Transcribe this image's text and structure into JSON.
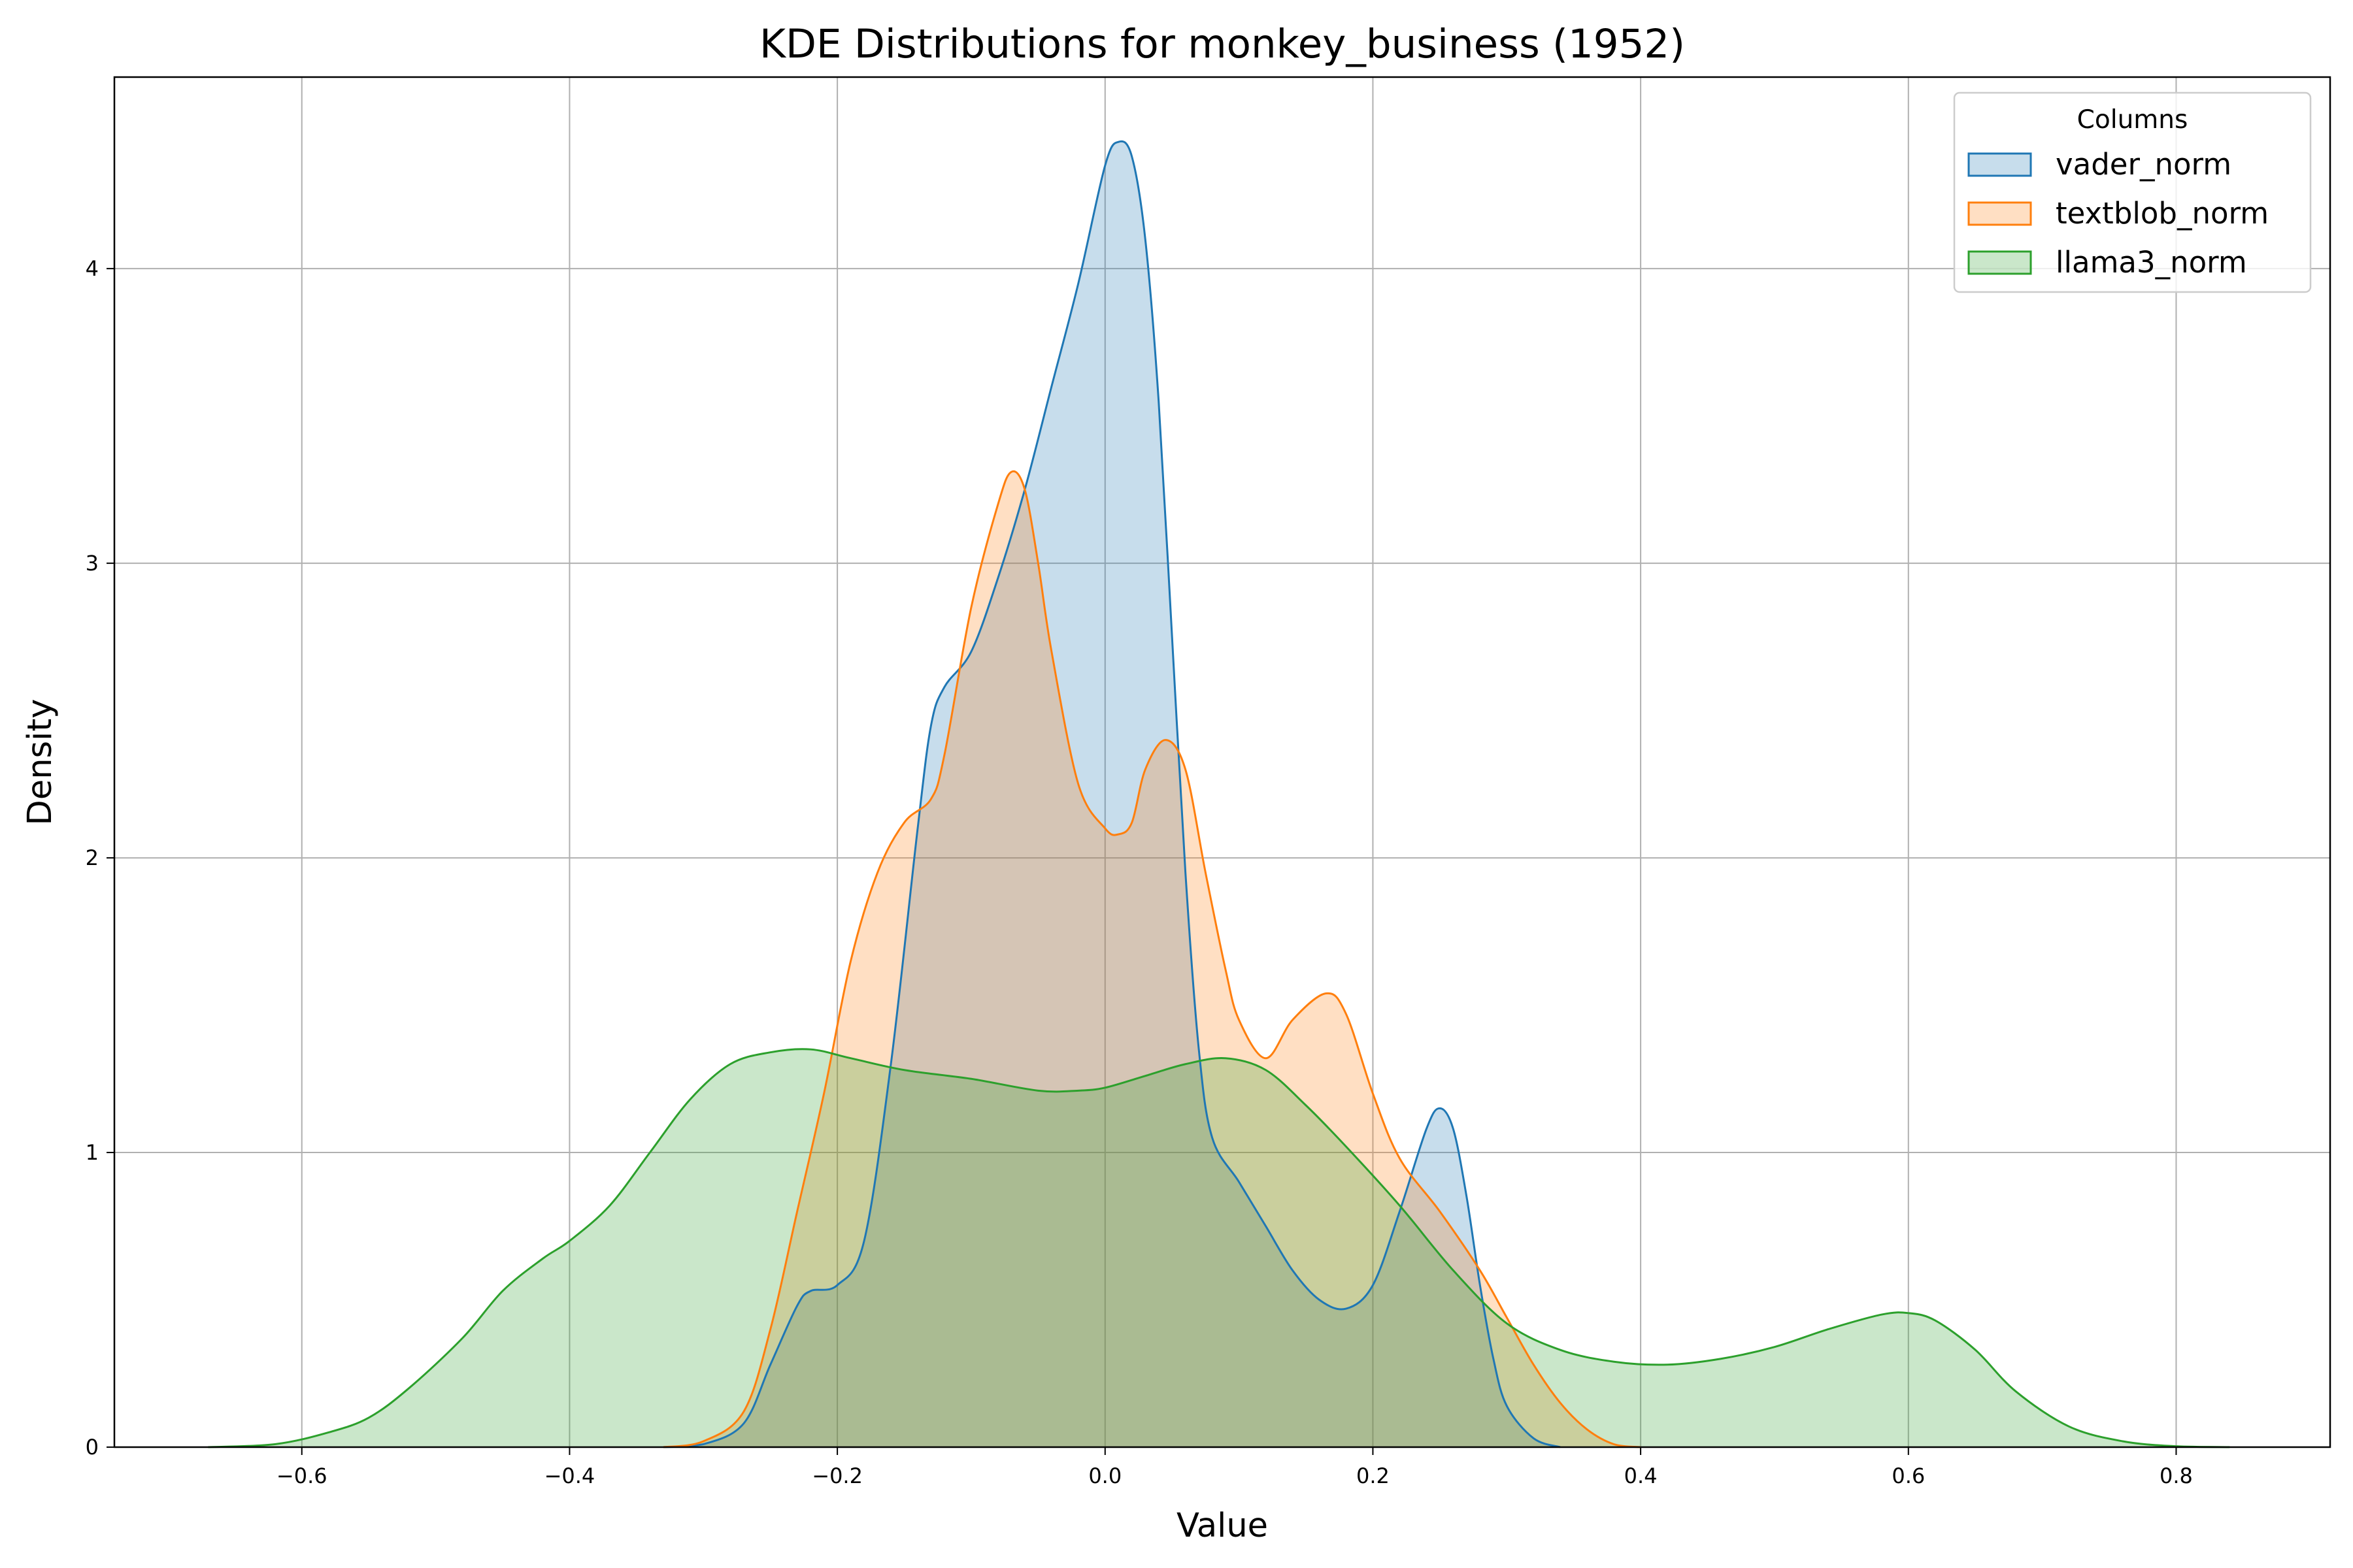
{
  "chart_data": {
    "type": "area",
    "title": "KDE Distributions for monkey_business (1952)",
    "xlabel": "Value",
    "ylabel": "Density",
    "xlim": [
      -0.74,
      0.915
    ],
    "ylim": [
      0,
      4.65
    ],
    "xticks": [
      -0.6,
      -0.4,
      -0.2,
      0.0,
      0.2,
      0.4,
      0.6,
      0.8
    ],
    "xtick_labels": [
      "−0.6",
      "−0.4",
      "−0.2",
      "0.0",
      "0.2",
      "0.4",
      "0.6",
      "0.8"
    ],
    "yticks": [
      0,
      1,
      2,
      3,
      4
    ],
    "ytick_labels": [
      "0",
      "1",
      "2",
      "3",
      "4"
    ],
    "grid": true,
    "legend": {
      "title": "Columns",
      "position": "top-right"
    },
    "series": [
      {
        "name": "vader_norm",
        "color": "#1f77b4",
        "points": [
          [
            -0.33,
            0
          ],
          [
            -0.3,
            0.01
          ],
          [
            -0.27,
            0.08
          ],
          [
            -0.25,
            0.28
          ],
          [
            -0.23,
            0.48
          ],
          [
            -0.22,
            0.53
          ],
          [
            -0.2,
            0.55
          ],
          [
            -0.18,
            0.7
          ],
          [
            -0.16,
            1.3
          ],
          [
            -0.14,
            2.1
          ],
          [
            -0.13,
            2.45
          ],
          [
            -0.12,
            2.58
          ],
          [
            -0.1,
            2.7
          ],
          [
            -0.08,
            2.95
          ],
          [
            -0.06,
            3.25
          ],
          [
            -0.04,
            3.6
          ],
          [
            -0.02,
            3.95
          ],
          [
            0.0,
            4.35
          ],
          [
            0.01,
            4.43
          ],
          [
            0.02,
            4.38
          ],
          [
            0.03,
            4.1
          ],
          [
            0.04,
            3.55
          ],
          [
            0.05,
            2.75
          ],
          [
            0.06,
            1.95
          ],
          [
            0.07,
            1.35
          ],
          [
            0.08,
            1.05
          ],
          [
            0.1,
            0.9
          ],
          [
            0.12,
            0.75
          ],
          [
            0.14,
            0.6
          ],
          [
            0.16,
            0.5
          ],
          [
            0.18,
            0.47
          ],
          [
            0.2,
            0.55
          ],
          [
            0.22,
            0.8
          ],
          [
            0.24,
            1.08
          ],
          [
            0.25,
            1.15
          ],
          [
            0.26,
            1.08
          ],
          [
            0.27,
            0.85
          ],
          [
            0.28,
            0.55
          ],
          [
            0.29,
            0.3
          ],
          [
            0.3,
            0.14
          ],
          [
            0.32,
            0.03
          ],
          [
            0.34,
            0
          ]
        ]
      },
      {
        "name": "textblob_norm",
        "color": "#ff7f0e",
        "points": [
          [
            -0.33,
            0
          ],
          [
            -0.3,
            0.02
          ],
          [
            -0.27,
            0.12
          ],
          [
            -0.25,
            0.4
          ],
          [
            -0.23,
            0.8
          ],
          [
            -0.21,
            1.2
          ],
          [
            -0.19,
            1.65
          ],
          [
            -0.17,
            1.95
          ],
          [
            -0.15,
            2.12
          ],
          [
            -0.13,
            2.2
          ],
          [
            -0.12,
            2.35
          ],
          [
            -0.1,
            2.85
          ],
          [
            -0.08,
            3.2
          ],
          [
            -0.07,
            3.31
          ],
          [
            -0.06,
            3.25
          ],
          [
            -0.05,
            3.0
          ],
          [
            -0.04,
            2.7
          ],
          [
            -0.02,
            2.25
          ],
          [
            0.0,
            2.1
          ],
          [
            0.01,
            2.08
          ],
          [
            0.02,
            2.12
          ],
          [
            0.03,
            2.3
          ],
          [
            0.045,
            2.4
          ],
          [
            0.06,
            2.3
          ],
          [
            0.075,
            1.95
          ],
          [
            0.09,
            1.62
          ],
          [
            0.1,
            1.45
          ],
          [
            0.12,
            1.32
          ],
          [
            0.14,
            1.45
          ],
          [
            0.165,
            1.54
          ],
          [
            0.18,
            1.47
          ],
          [
            0.2,
            1.2
          ],
          [
            0.22,
            0.98
          ],
          [
            0.25,
            0.8
          ],
          [
            0.28,
            0.6
          ],
          [
            0.3,
            0.44
          ],
          [
            0.32,
            0.28
          ],
          [
            0.34,
            0.15
          ],
          [
            0.36,
            0.06
          ],
          [
            0.38,
            0.01
          ],
          [
            0.4,
            0
          ]
        ]
      },
      {
        "name": "llama3_norm",
        "color": "#2ca02c",
        "points": [
          [
            -0.67,
            0
          ],
          [
            -0.62,
            0.01
          ],
          [
            -0.58,
            0.05
          ],
          [
            -0.55,
            0.1
          ],
          [
            -0.52,
            0.2
          ],
          [
            -0.48,
            0.37
          ],
          [
            -0.45,
            0.53
          ],
          [
            -0.42,
            0.64
          ],
          [
            -0.4,
            0.7
          ],
          [
            -0.37,
            0.82
          ],
          [
            -0.34,
            1.0
          ],
          [
            -0.31,
            1.18
          ],
          [
            -0.28,
            1.3
          ],
          [
            -0.25,
            1.34
          ],
          [
            -0.22,
            1.35
          ],
          [
            -0.19,
            1.32
          ],
          [
            -0.15,
            1.28
          ],
          [
            -0.1,
            1.25
          ],
          [
            -0.05,
            1.21
          ],
          [
            -0.02,
            1.21
          ],
          [
            0.0,
            1.22
          ],
          [
            0.03,
            1.26
          ],
          [
            0.06,
            1.3
          ],
          [
            0.09,
            1.32
          ],
          [
            0.12,
            1.28
          ],
          [
            0.15,
            1.16
          ],
          [
            0.18,
            1.02
          ],
          [
            0.22,
            0.82
          ],
          [
            0.26,
            0.6
          ],
          [
            0.3,
            0.42
          ],
          [
            0.34,
            0.33
          ],
          [
            0.38,
            0.29
          ],
          [
            0.42,
            0.28
          ],
          [
            0.46,
            0.3
          ],
          [
            0.5,
            0.34
          ],
          [
            0.54,
            0.4
          ],
          [
            0.58,
            0.45
          ],
          [
            0.6,
            0.455
          ],
          [
            0.62,
            0.43
          ],
          [
            0.65,
            0.33
          ],
          [
            0.68,
            0.19
          ],
          [
            0.72,
            0.07
          ],
          [
            0.76,
            0.02
          ],
          [
            0.8,
            0.003
          ],
          [
            0.84,
            0
          ]
        ]
      }
    ]
  }
}
